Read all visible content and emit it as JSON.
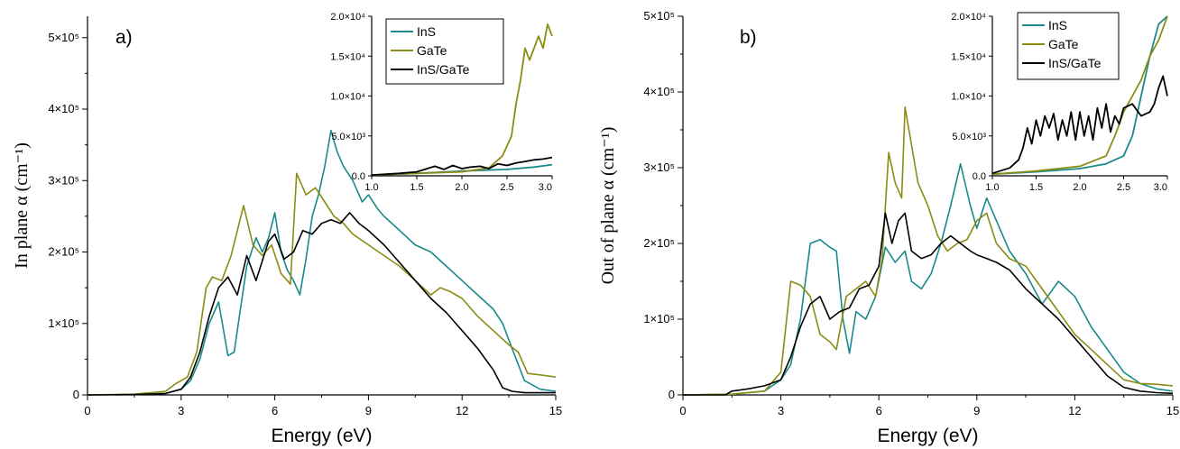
{
  "chart_data": [
    {
      "type": "line",
      "panel_label": "a)",
      "xlabel": "Energy (eV)",
      "ylabel": "In plane α (cm⁻¹)",
      "xlim": [
        0,
        15
      ],
      "ylim": [
        0,
        530000
      ],
      "xticks": [
        0,
        3,
        6,
        9,
        12,
        15
      ],
      "xtick_labels": [
        "0",
        "3",
        "6",
        "9",
        "12",
        "15"
      ],
      "yticks": [
        0,
        100000,
        200000,
        300000,
        400000,
        500000
      ],
      "ytick_labels": [
        "0",
        "1×10⁵",
        "2×10⁵",
        "3×10⁵",
        "4×10⁵",
        "5×10⁵"
      ],
      "grid": false,
      "series": [
        {
          "name": "InS",
          "color": "#1a8a8a",
          "x": [
            0,
            1.5,
            2.5,
            3.0,
            3.3,
            3.6,
            3.9,
            4.2,
            4.5,
            4.7,
            4.9,
            5.1,
            5.4,
            5.6,
            5.8,
            6.0,
            6.2,
            6.4,
            6.6,
            6.8,
            7.0,
            7.2,
            7.4,
            7.6,
            7.8,
            8.0,
            8.2,
            8.5,
            8.8,
            9.0,
            9.3,
            9.5,
            10.0,
            10.5,
            11.0,
            11.5,
            12.0,
            12.5,
            13.0,
            13.3,
            13.6,
            14.0,
            14.5,
            15.0
          ],
          "y": [
            0,
            500,
            2000,
            8000,
            20000,
            50000,
            100000,
            130000,
            55000,
            60000,
            120000,
            180000,
            220000,
            200000,
            220000,
            255000,
            200000,
            175000,
            160000,
            140000,
            190000,
            250000,
            280000,
            320000,
            370000,
            340000,
            320000,
            300000,
            270000,
            280000,
            260000,
            250000,
            230000,
            210000,
            200000,
            180000,
            160000,
            140000,
            120000,
            100000,
            65000,
            20000,
            8000,
            5000
          ]
        },
        {
          "name": "GaTe",
          "color": "#8c8c14",
          "x": [
            0,
            1.5,
            2.5,
            2.8,
            3.2,
            3.5,
            3.8,
            4.0,
            4.3,
            4.6,
            5.0,
            5.3,
            5.6,
            5.9,
            6.2,
            6.5,
            6.7,
            7.0,
            7.3,
            7.6,
            7.9,
            8.2,
            8.5,
            9.0,
            9.5,
            10.0,
            10.5,
            11.0,
            11.3,
            11.6,
            12.0,
            12.5,
            13.0,
            13.5,
            13.8,
            14.1,
            14.5,
            15.0
          ],
          "y": [
            0,
            1000,
            5000,
            15000,
            25000,
            60000,
            150000,
            165000,
            160000,
            195000,
            265000,
            210000,
            195000,
            210000,
            170000,
            155000,
            310000,
            280000,
            290000,
            270000,
            250000,
            240000,
            225000,
            210000,
            195000,
            180000,
            160000,
            140000,
            150000,
            145000,
            135000,
            110000,
            90000,
            70000,
            60000,
            30000,
            28000,
            25000
          ]
        },
        {
          "name": "InS/GaTe",
          "color": "#000000",
          "x": [
            0,
            1.5,
            2.5,
            3.0,
            3.3,
            3.6,
            3.9,
            4.2,
            4.5,
            4.8,
            5.1,
            5.4,
            5.8,
            6.0,
            6.3,
            6.6,
            6.9,
            7.2,
            7.5,
            7.8,
            8.1,
            8.4,
            8.7,
            9.0,
            9.5,
            10.0,
            10.5,
            11.0,
            11.5,
            12.0,
            12.5,
            13.0,
            13.3,
            13.6,
            14.0,
            14.5,
            15.0
          ],
          "y": [
            0,
            500,
            2000,
            8000,
            25000,
            60000,
            110000,
            150000,
            165000,
            140000,
            195000,
            160000,
            215000,
            225000,
            190000,
            200000,
            230000,
            225000,
            240000,
            245000,
            240000,
            255000,
            240000,
            230000,
            210000,
            185000,
            160000,
            135000,
            115000,
            90000,
            65000,
            35000,
            10000,
            5000,
            3000,
            3000,
            3000
          ]
        }
      ],
      "legend": "top-right",
      "inset": {
        "xlim": [
          1.0,
          3.0
        ],
        "ylim": [
          0,
          20000
        ],
        "xticks": [
          1.0,
          1.5,
          2.0,
          2.5,
          3.0
        ],
        "xtick_labels": [
          "1.0",
          "1.5",
          "2.0",
          "2.5",
          "3.0"
        ],
        "yticks": [
          0,
          5000,
          10000,
          15000,
          20000
        ],
        "ytick_labels": [
          "0.0",
          "5.0×10³",
          "1.0×10⁴",
          "1.5×10⁴",
          "2.0×10⁴"
        ],
        "series": [
          {
            "name": "InS",
            "color": "#1a8a8a",
            "x": [
              1.0,
              1.5,
              2.0,
              2.5,
              2.8,
              3.0
            ],
            "y": [
              100,
              300,
              600,
              800,
              1100,
              1400
            ]
          },
          {
            "name": "GaTe",
            "color": "#8c8c14",
            "x": [
              1.0,
              1.5,
              2.0,
              2.3,
              2.45,
              2.55,
              2.6,
              2.65,
              2.7,
              2.75,
              2.8,
              2.85,
              2.9,
              2.95,
              3.0
            ],
            "y": [
              100,
              300,
              500,
              1000,
              2500,
              5000,
              9000,
              12000,
              16000,
              14500,
              16000,
              17500,
              16000,
              19000,
              17500
            ]
          },
          {
            "name": "InS/GaTe",
            "color": "#000000",
            "x": [
              1.0,
              1.3,
              1.5,
              1.7,
              1.8,
              1.9,
              2.0,
              2.1,
              2.2,
              2.3,
              2.4,
              2.5,
              2.6,
              2.7,
              2.8,
              2.9,
              3.0
            ],
            "y": [
              100,
              300,
              500,
              1200,
              800,
              1300,
              900,
              1100,
              1200,
              900,
              1500,
              1300,
              1600,
              1800,
              2000,
              2100,
              2300
            ]
          }
        ]
      }
    },
    {
      "type": "line",
      "panel_label": "b)",
      "xlabel": "Energy (eV)",
      "ylabel": "Out of plane α (cm⁻¹)",
      "xlim": [
        0,
        15
      ],
      "ylim": [
        0,
        500000
      ],
      "xticks": [
        0,
        3,
        6,
        9,
        12,
        15
      ],
      "xtick_labels": [
        "0",
        "3",
        "6",
        "9",
        "12",
        "15"
      ],
      "yticks": [
        0,
        100000,
        200000,
        300000,
        400000,
        500000
      ],
      "ytick_labels": [
        "0",
        "1×10⁵",
        "2×10⁵",
        "3×10⁵",
        "4×10⁵",
        "5×10⁵"
      ],
      "grid": false,
      "series": [
        {
          "name": "InS",
          "color": "#1a8a8a",
          "x": [
            0,
            1.5,
            2.5,
            3.0,
            3.3,
            3.6,
            3.9,
            4.2,
            4.5,
            4.7,
            4.9,
            5.1,
            5.3,
            5.6,
            5.9,
            6.2,
            6.5,
            6.8,
            7.0,
            7.3,
            7.6,
            7.9,
            8.2,
            8.5,
            8.8,
            9.0,
            9.3,
            9.6,
            10.0,
            10.5,
            11.0,
            11.5,
            12.0,
            12.5,
            13.0,
            13.5,
            14.0,
            14.5,
            15.0
          ],
          "y": [
            0,
            1000,
            5000,
            20000,
            40000,
            100000,
            200000,
            205000,
            195000,
            190000,
            100000,
            55000,
            110000,
            100000,
            130000,
            195000,
            175000,
            190000,
            150000,
            140000,
            160000,
            200000,
            250000,
            305000,
            250000,
            220000,
            260000,
            230000,
            190000,
            160000,
            120000,
            150000,
            130000,
            90000,
            60000,
            30000,
            15000,
            8000,
            5000
          ]
        },
        {
          "name": "GaTe",
          "color": "#8c8c14",
          "x": [
            0,
            1.5,
            2.5,
            3.0,
            3.3,
            3.6,
            3.9,
            4.2,
            4.5,
            4.7,
            5.0,
            5.3,
            5.6,
            5.9,
            6.1,
            6.3,
            6.5,
            6.7,
            6.8,
            7.0,
            7.2,
            7.5,
            7.8,
            8.1,
            8.4,
            8.7,
            9.0,
            9.3,
            9.6,
            10.0,
            10.5,
            11.0,
            11.5,
            12.0,
            12.5,
            13.0,
            13.5,
            14.0,
            14.5,
            15.0
          ],
          "y": [
            0,
            1000,
            5000,
            30000,
            150000,
            145000,
            130000,
            80000,
            70000,
            60000,
            130000,
            140000,
            150000,
            130000,
            180000,
            320000,
            280000,
            260000,
            380000,
            330000,
            280000,
            250000,
            210000,
            190000,
            200000,
            205000,
            230000,
            240000,
            200000,
            180000,
            170000,
            140000,
            110000,
            80000,
            60000,
            40000,
            20000,
            15000,
            14000,
            12000
          ]
        },
        {
          "name": "InS/GaTe",
          "color": "#000000",
          "x": [
            0,
            1.3,
            1.5,
            2.0,
            2.5,
            3.0,
            3.3,
            3.6,
            3.9,
            4.2,
            4.5,
            4.8,
            5.1,
            5.4,
            5.7,
            6.0,
            6.2,
            6.4,
            6.6,
            6.8,
            7.0,
            7.3,
            7.6,
            7.9,
            8.2,
            8.5,
            8.8,
            9.0,
            9.3,
            9.6,
            10.0,
            10.5,
            11.0,
            11.5,
            12.0,
            12.5,
            13.0,
            13.5,
            14.0,
            14.5,
            15.0
          ],
          "y": [
            0,
            0,
            5000,
            8000,
            12000,
            20000,
            50000,
            90000,
            120000,
            130000,
            100000,
            110000,
            115000,
            140000,
            145000,
            170000,
            240000,
            200000,
            230000,
            240000,
            190000,
            180000,
            185000,
            200000,
            210000,
            200000,
            190000,
            185000,
            180000,
            175000,
            165000,
            140000,
            120000,
            100000,
            75000,
            50000,
            25000,
            10000,
            5000,
            3000,
            2000
          ]
        }
      ],
      "legend": "top-right",
      "inset": {
        "xlim": [
          1.0,
          3.0
        ],
        "ylim": [
          0,
          20000
        ],
        "xticks": [
          1.0,
          1.5,
          2.0,
          2.5,
          3.0
        ],
        "xtick_labels": [
          "1.0",
          "1.5",
          "2.0",
          "2.5",
          "3.0"
        ],
        "yticks": [
          0,
          5000,
          10000,
          15000,
          20000
        ],
        "ytick_labels": [
          "0.0",
          "5.0×10³",
          "1.0×10⁴",
          "1.5×10⁴",
          "2.0×10⁴"
        ],
        "series": [
          {
            "name": "InS",
            "color": "#1a8a8a",
            "x": [
              1.0,
              1.5,
              2.0,
              2.3,
              2.5,
              2.6,
              2.7,
              2.8,
              2.9,
              3.0
            ],
            "y": [
              200,
              500,
              900,
              1500,
              2500,
              5000,
              10000,
              15000,
              19000,
              20000
            ]
          },
          {
            "name": "GaTe",
            "color": "#8c8c14",
            "x": [
              1.0,
              1.5,
              2.0,
              2.3,
              2.4,
              2.5,
              2.6,
              2.7,
              2.8,
              2.9,
              3.0
            ],
            "y": [
              200,
              600,
              1200,
              2500,
              5000,
              8000,
              10000,
              12000,
              15000,
              17000,
              20000
            ]
          },
          {
            "name": "InS/GaTe",
            "color": "#000000",
            "x": [
              1.0,
              1.2,
              1.3,
              1.35,
              1.4,
              1.45,
              1.5,
              1.55,
              1.6,
              1.65,
              1.7,
              1.75,
              1.8,
              1.85,
              1.9,
              1.95,
              2.0,
              2.05,
              2.1,
              2.15,
              2.2,
              2.25,
              2.3,
              2.35,
              2.4,
              2.45,
              2.5,
              2.6,
              2.7,
              2.8,
              2.85,
              2.9,
              2.95,
              3.0
            ],
            "y": [
              300,
              1000,
              2000,
              3500,
              6000,
              4000,
              7000,
              5000,
              7500,
              6000,
              7800,
              4500,
              7000,
              5000,
              8000,
              4500,
              8000,
              5000,
              7500,
              4500,
              8500,
              6000,
              9000,
              5500,
              7500,
              6500,
              8500,
              9000,
              7500,
              8000,
              9000,
              11000,
              12500,
              10000
            ]
          }
        ]
      }
    }
  ]
}
